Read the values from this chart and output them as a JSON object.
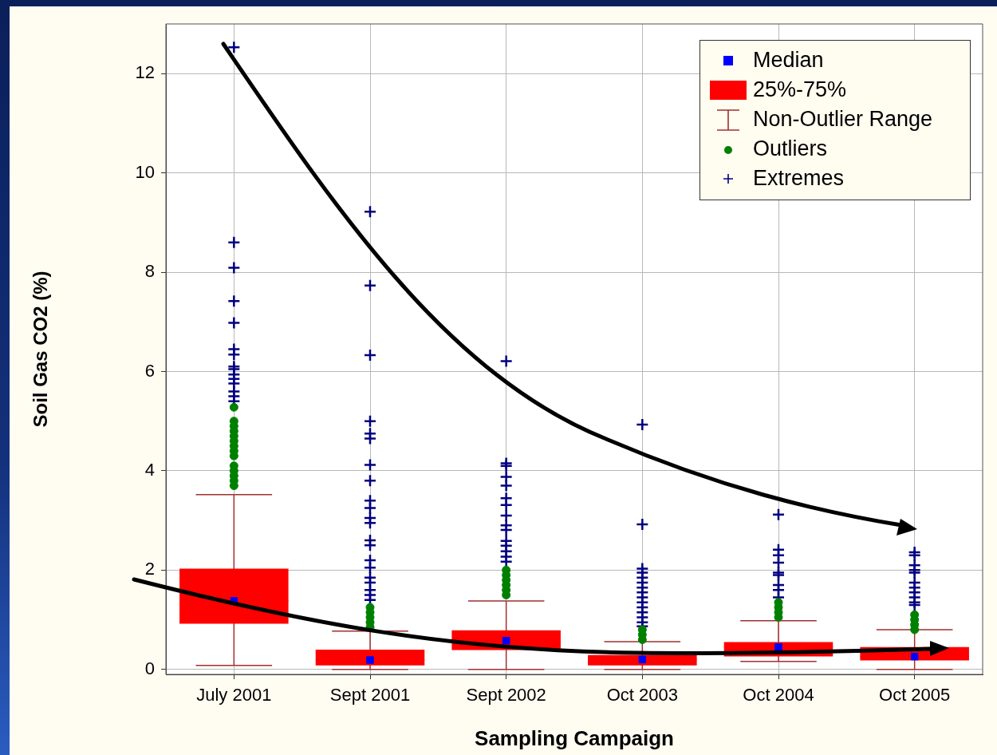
{
  "chart_data": {
    "type": "box",
    "xlabel": "Sampling Campaign",
    "ylabel": "Soil Gas CO2 (%)",
    "categories": [
      "July 2001",
      "Sept 2001",
      "Sept 2002",
      "Oct 2003",
      "Oct 2004",
      "Oct 2005"
    ],
    "ylim": [
      -0.1,
      13
    ],
    "yticks": [
      0,
      2,
      4,
      6,
      8,
      10,
      12
    ],
    "grid": true,
    "legend": "top right",
    "annotations": [
      "Non-Outlier Range"
    ],
    "series": [
      {
        "name": "Median",
        "type": "scatter",
        "marker": "square",
        "color": "#0000ff",
        "x": [
          "July 2001",
          "Sept 2001",
          "Sept 2002",
          "Oct 2003",
          "Oct 2004",
          "Oct 2005"
        ],
        "values": [
          1.38,
          0.19,
          0.58,
          0.2,
          0.45,
          0.26
        ]
      },
      {
        "name": "25%-75%",
        "type": "box",
        "color": "#ff0000",
        "boxes": [
          {
            "low": 0.08,
            "q1": 0.92,
            "median": 1.38,
            "q3": 2.03,
            "high": 3.52
          },
          {
            "low": 0.0,
            "q1": 0.08,
            "median": 0.19,
            "q3": 0.4,
            "high": 0.77
          },
          {
            "low": 0.0,
            "q1": 0.39,
            "median": 0.58,
            "q3": 0.79,
            "high": 1.38
          },
          {
            "low": 0.0,
            "q1": 0.08,
            "median": 0.2,
            "q3": 0.29,
            "high": 0.56
          },
          {
            "low": 0.16,
            "q1": 0.26,
            "median": 0.45,
            "q3": 0.55,
            "high": 0.98
          },
          {
            "low": 0.0,
            "q1": 0.18,
            "median": 0.26,
            "q3": 0.45,
            "high": 0.8
          }
        ]
      },
      {
        "name": "Outliers",
        "type": "scatter",
        "marker": "circle",
        "color": "#008000",
        "x": [
          "July 2001",
          "July 2001",
          "July 2001",
          "July 2001",
          "July 2001",
          "July 2001",
          "July 2001",
          "July 2001",
          "July 2001",
          "July 2001",
          "July 2001",
          "July 2001",
          "July 2001",
          "July 2001",
          "Sept 2001",
          "Sept 2001",
          "Sept 2001",
          "Sept 2001",
          "Sept 2001",
          "Sept 2002",
          "Sept 2002",
          "Sept 2002",
          "Sept 2002",
          "Sept 2002",
          "Sept 2002",
          "Oct 2003",
          "Oct 2003",
          "Oct 2003",
          "Oct 2004",
          "Oct 2004",
          "Oct 2004",
          "Oct 2004",
          "Oct 2005",
          "Oct 2005",
          "Oct 2005",
          "Oct 2005"
        ],
        "values": [
          5.28,
          5.0,
          4.9,
          4.8,
          4.7,
          4.6,
          4.5,
          4.4,
          4.3,
          4.1,
          4.0,
          3.9,
          3.8,
          3.7,
          1.25,
          1.15,
          1.05,
          0.95,
          0.85,
          2.0,
          1.9,
          1.8,
          1.7,
          1.6,
          1.5,
          0.8,
          0.7,
          0.6,
          1.35,
          1.25,
          1.15,
          1.05,
          1.1,
          1.0,
          0.9,
          0.8
        ]
      },
      {
        "name": "Extremes",
        "type": "scatter",
        "marker": "cross",
        "color": "#000080",
        "x": [
          "July 2001",
          "July 2001",
          "July 2001",
          "July 2001",
          "July 2001",
          "July 2001",
          "July 2001",
          "July 2001",
          "July 2001",
          "July 2001",
          "July 2001",
          "July 2001",
          "July 2001",
          "July 2001",
          "July 2001",
          "Sept 2001",
          "Sept 2001",
          "Sept 2001",
          "Sept 2001",
          "Sept 2001",
          "Sept 2001",
          "Sept 2001",
          "Sept 2001",
          "Sept 2001",
          "Sept 2001",
          "Sept 2001",
          "Sept 2001",
          "Sept 2001",
          "Sept 2001",
          "Sept 2001",
          "Sept 2001",
          "Sept 2001",
          "Sept 2001",
          "Sept 2001",
          "Sept 2001",
          "Sept 2001",
          "Sept 2002",
          "Sept 2002",
          "Sept 2002",
          "Sept 2002",
          "Sept 2002",
          "Sept 2002",
          "Sept 2002",
          "Sept 2002",
          "Sept 2002",
          "Sept 2002",
          "Sept 2002",
          "Sept 2002",
          "Sept 2002",
          "Sept 2002",
          "Sept 2002",
          "Oct 2003",
          "Oct 2003",
          "Oct 2003",
          "Oct 2003",
          "Oct 2003",
          "Oct 2003",
          "Oct 2003",
          "Oct 2003",
          "Oct 2003",
          "Oct 2003",
          "Oct 2003",
          "Oct 2003",
          "Oct 2003",
          "Oct 2003",
          "Oct 2003",
          "Oct 2004",
          "Oct 2004",
          "Oct 2004",
          "Oct 2004",
          "Oct 2004",
          "Oct 2004",
          "Oct 2004",
          "Oct 2004",
          "Oct 2004",
          "Oct 2005",
          "Oct 2005",
          "Oct 2005",
          "Oct 2005",
          "Oct 2005",
          "Oct 2005",
          "Oct 2005",
          "Oct 2005",
          "Oct 2005",
          "Oct 2005",
          "Oct 2005"
        ],
        "values": [
          12.53,
          8.6,
          8.09,
          7.42,
          6.98,
          6.45,
          6.34,
          6.1,
          6.05,
          5.94,
          5.85,
          5.76,
          5.6,
          5.5,
          5.4,
          9.22,
          7.73,
          6.33,
          5.0,
          4.75,
          4.65,
          4.12,
          3.8,
          3.4,
          3.25,
          3.05,
          2.95,
          2.6,
          2.5,
          2.2,
          2.05,
          1.85,
          1.75,
          1.6,
          1.5,
          1.4,
          6.21,
          4.15,
          4.1,
          3.88,
          3.7,
          3.45,
          3.31,
          3.1,
          2.9,
          2.81,
          2.59,
          2.49,
          2.38,
          2.27,
          2.17,
          4.93,
          2.92,
          2.03,
          1.95,
          1.85,
          1.75,
          1.65,
          1.55,
          1.45,
          1.35,
          1.25,
          1.15,
          1.05,
          0.95,
          0.87,
          3.12,
          2.41,
          2.3,
          2.15,
          1.95,
          1.9,
          1.7,
          1.6,
          1.45,
          2.36,
          2.3,
          2.1,
          2.0,
          1.95,
          1.75,
          1.65,
          1.55,
          1.45,
          1.35,
          1.3
        ]
      }
    ]
  }
}
